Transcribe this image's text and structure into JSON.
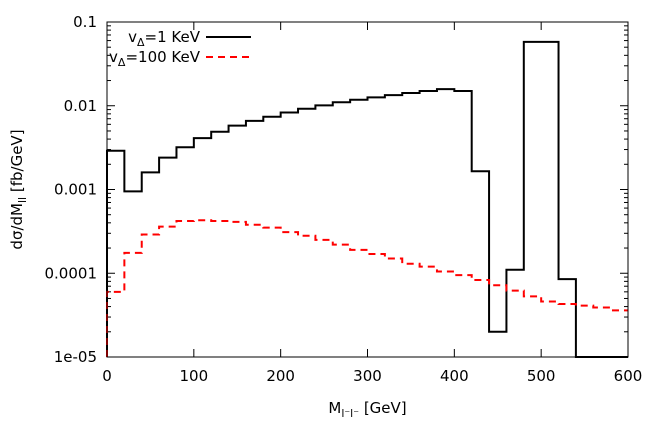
{
  "chart_data": {
    "type": "line",
    "style": "step histogram",
    "xlabel": {
      "main": "M",
      "sub": "l⁻l⁻",
      "unit": " [GeV]"
    },
    "ylabel": {
      "main": "dσ/dM",
      "sub": "ll",
      "unit": " [fb/GeV]"
    },
    "xlim": [
      0,
      600
    ],
    "ylim": [
      1e-05,
      0.1
    ],
    "yscale": "log",
    "grid": false,
    "legend_position": "top-left",
    "x_ticks": [
      0,
      100,
      200,
      300,
      400,
      500,
      600
    ],
    "x_tick_labels": [
      "0",
      "100",
      "200",
      "300",
      "400",
      "500",
      "600"
    ],
    "y_ticks": [
      1e-05,
      0.0001,
      0.001,
      0.01,
      0.1
    ],
    "y_tick_labels": [
      "1e-05",
      "0.0001",
      "0.001",
      "0.01",
      "0.1"
    ],
    "bin_edges": [
      0,
      20,
      40,
      60,
      80,
      100,
      120,
      140,
      160,
      180,
      200,
      220,
      240,
      260,
      280,
      300,
      320,
      340,
      360,
      380,
      400,
      420,
      440,
      460,
      480,
      500,
      520,
      540,
      560,
      580,
      600
    ],
    "series": [
      {
        "name": "v_Δ=1 KeV",
        "legend_main": "v",
        "legend_sub": "Δ",
        "legend_rest": "=1 KeV",
        "color": "#000000",
        "dash": "solid",
        "values": [
          0.0029,
          0.00095,
          0.0016,
          0.0024,
          0.0032,
          0.0041,
          0.0049,
          0.0058,
          0.0066,
          0.0074,
          0.0083,
          0.0092,
          0.0101,
          0.011,
          0.0118,
          0.0126,
          0.0134,
          0.0142,
          0.015,
          0.0158,
          0.015,
          0.00165,
          2e-05,
          0.00011,
          0.058,
          0.058,
          8.5e-05,
          1e-05,
          1e-05,
          1e-05
        ]
      },
      {
        "name": "v_Δ=100 KeV",
        "legend_main": "v",
        "legend_sub": "Δ",
        "legend_rest": "=100 KeV",
        "color": "#ff0000",
        "dash": "dashed",
        "values": [
          6e-05,
          0.000175,
          0.00029,
          0.00036,
          0.00042,
          0.00043,
          0.00042,
          0.00041,
          0.00038,
          0.00035,
          0.00031,
          0.00028,
          0.00025,
          0.00022,
          0.00019,
          0.00017,
          0.00015,
          0.00013,
          0.00012,
          0.000105,
          9.5e-05,
          8.3e-05,
          7.2e-05,
          6.2e-05,
          5.3e-05,
          4.6e-05,
          4.3e-05,
          4.1e-05,
          3.9e-05,
          3.6e-05
        ]
      }
    ]
  }
}
